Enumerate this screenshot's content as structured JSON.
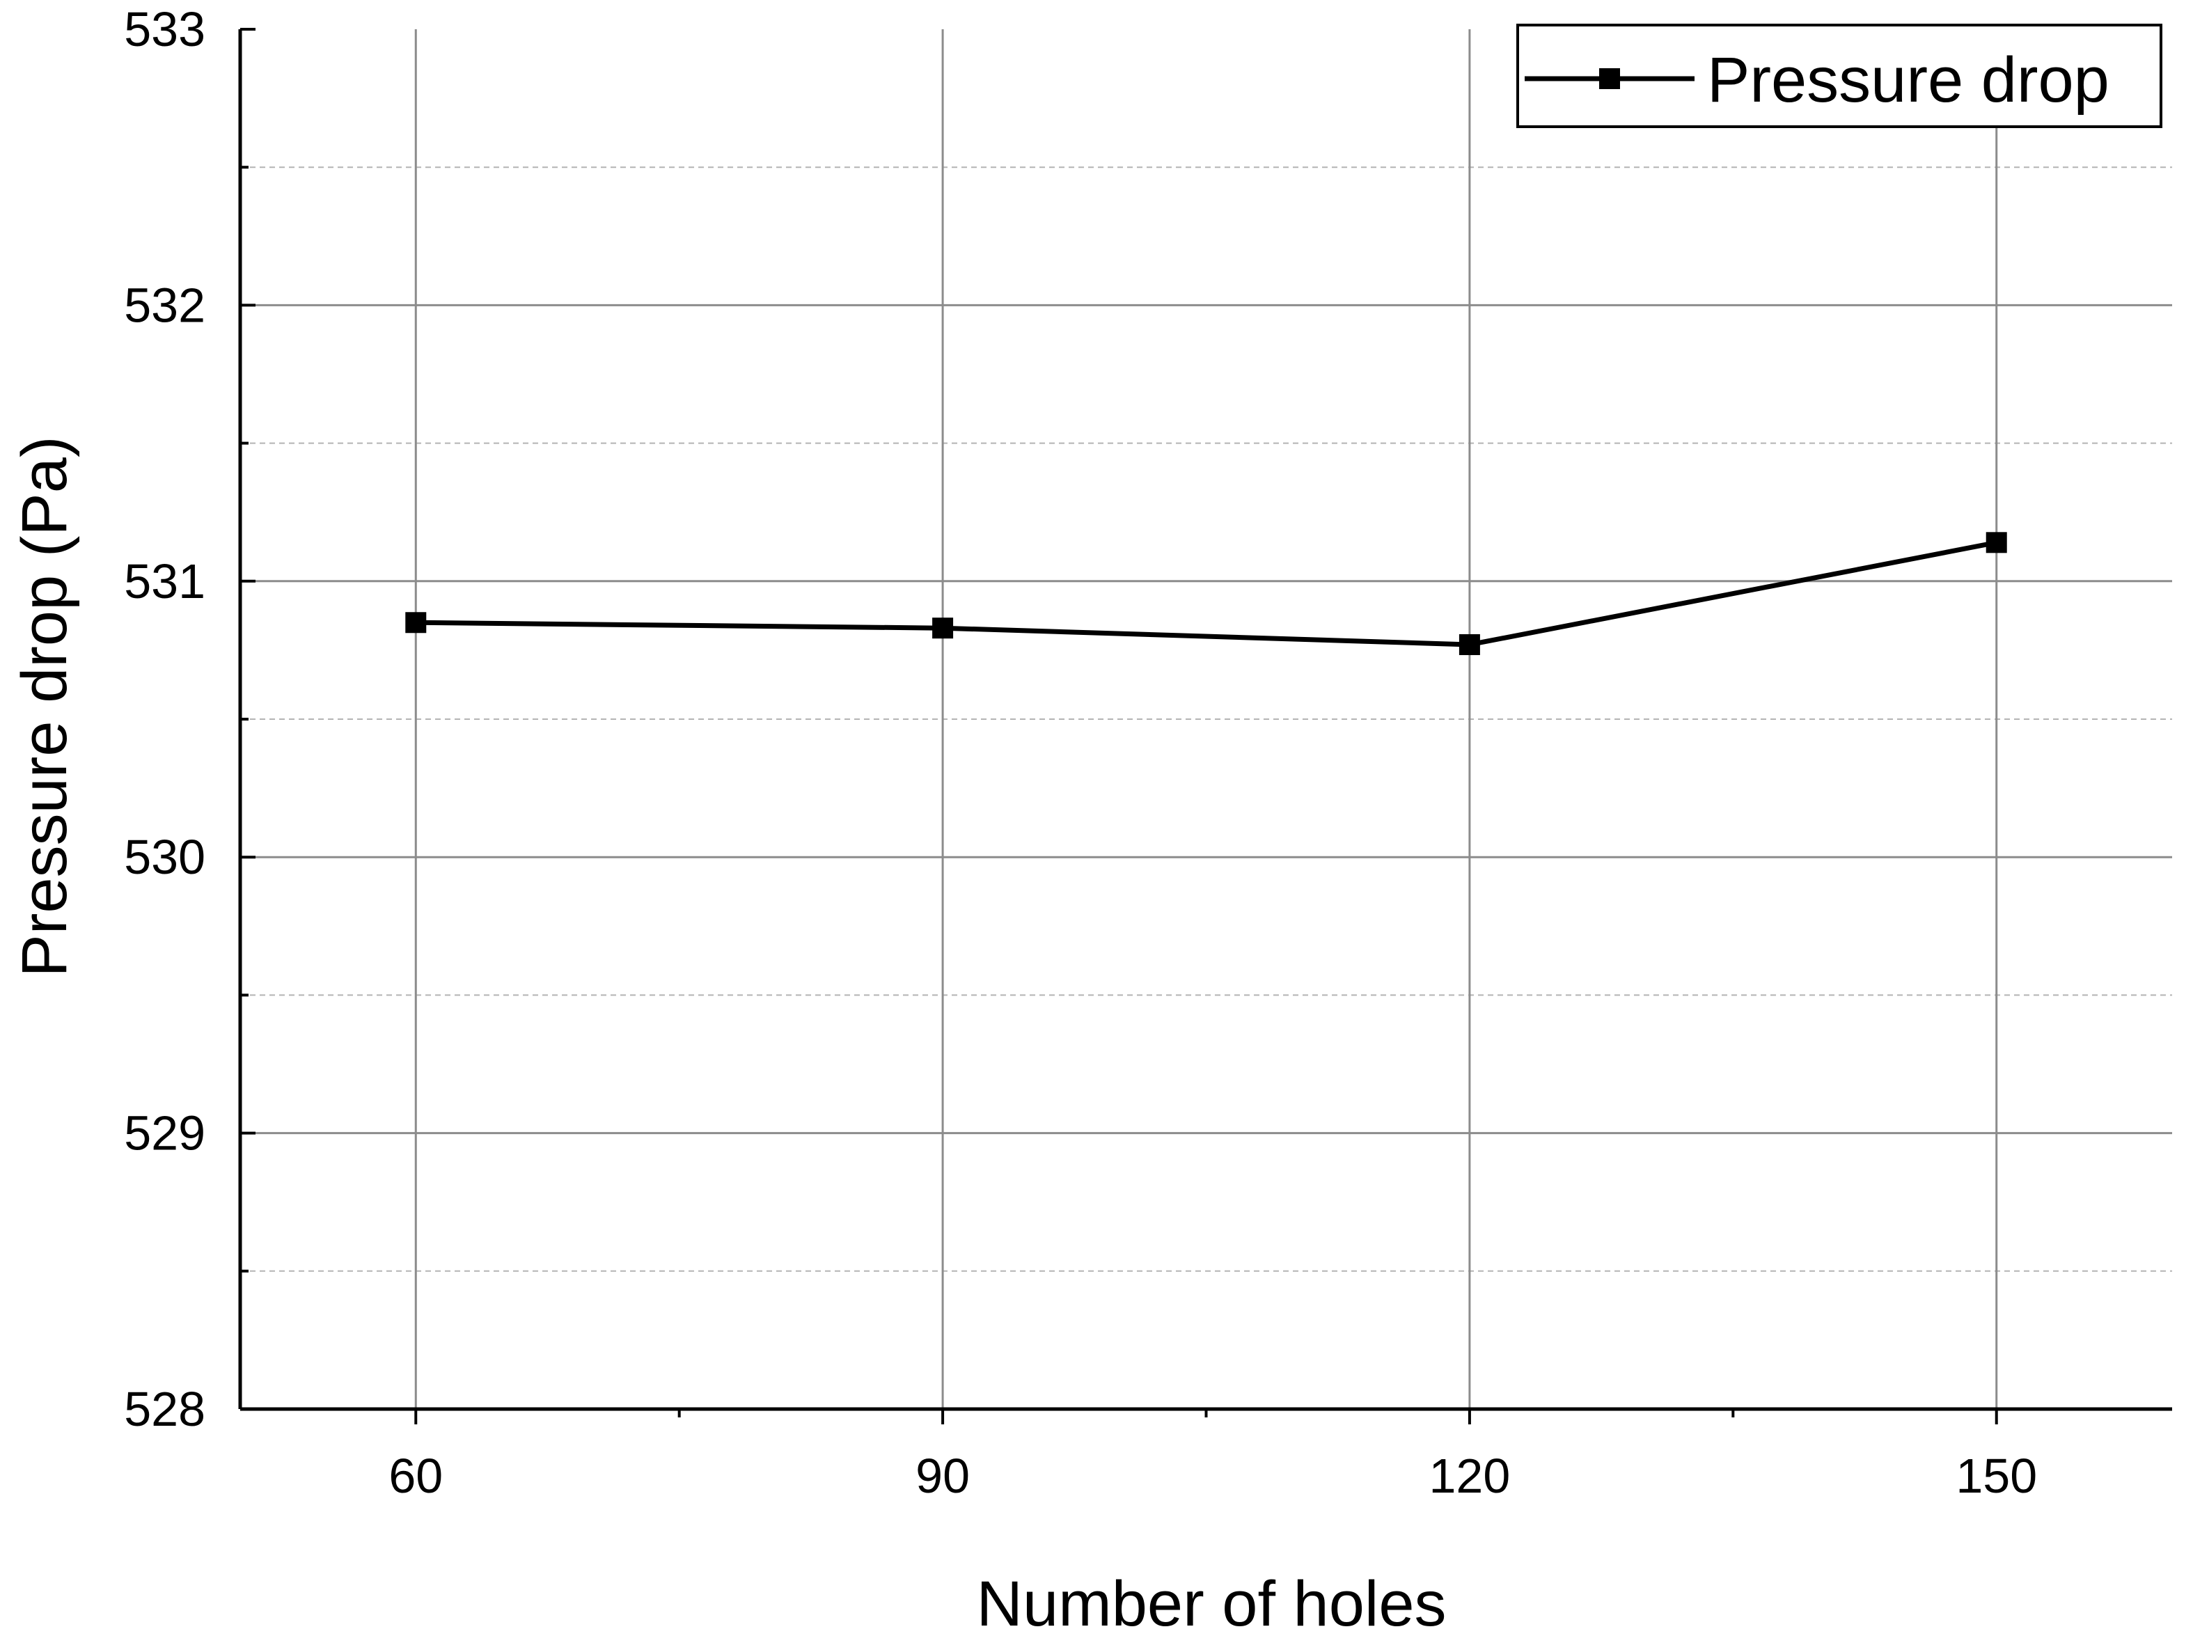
{
  "chart_data": {
    "type": "line",
    "title": "",
    "xlabel": "Number of holes",
    "ylabel": "Pressure drop (Pa)",
    "x": [
      60,
      90,
      120,
      150
    ],
    "x_tick_labels": [
      "60",
      "90",
      "120",
      "150"
    ],
    "xlim": [
      50,
      160
    ],
    "ylim": [
      528,
      533
    ],
    "y_tick_labels": [
      "528",
      "529",
      "530",
      "531",
      "532",
      "533"
    ],
    "y_minor_ticks": [
      528.5,
      529.5,
      530.5,
      531.5,
      532.5
    ],
    "grid": true,
    "legend_position": "top-right",
    "series": [
      {
        "name": "Pressure drop",
        "color": "#000000",
        "marker": "square",
        "values": [
          530.85,
          530.83,
          530.77,
          531.14
        ]
      }
    ]
  }
}
